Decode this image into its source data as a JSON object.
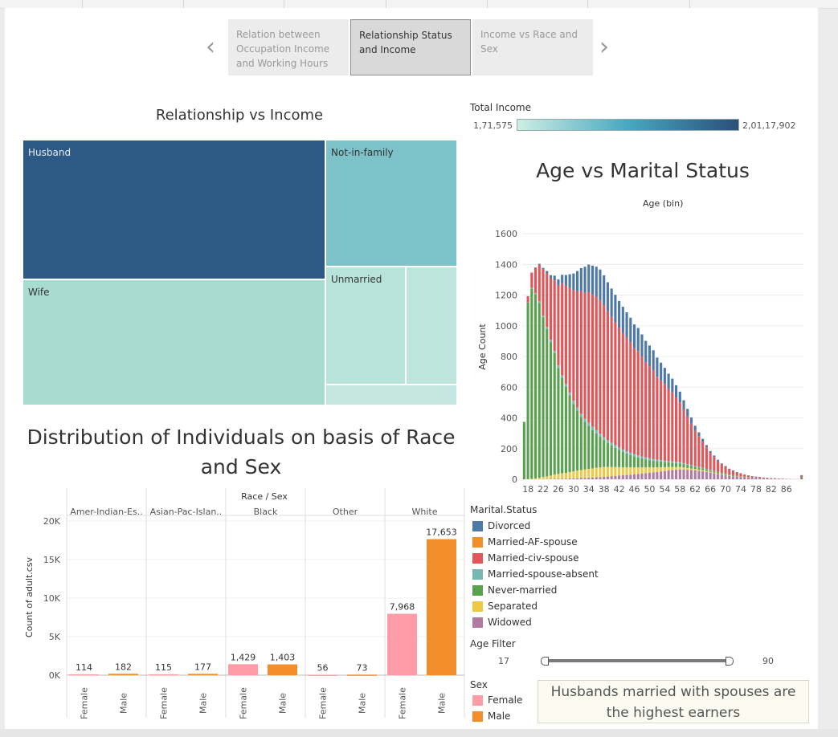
{
  "story": {
    "points": [
      {
        "label": "Relation between Occupation Income and Working Hours",
        "active": false
      },
      {
        "label": "Relationship Status and Income",
        "active": true
      },
      {
        "label": "Income vs Race and Sex",
        "active": false
      }
    ],
    "prev_glyph": "‹",
    "next_glyph": "›"
  },
  "treemap": {
    "title": "Relationship vs Income",
    "cells": [
      {
        "label": "Husband",
        "color": "#2d5986"
      },
      {
        "label": "Wife",
        "color": "#a8dcd3"
      },
      {
        "label": "Not-in-family",
        "color": "#7dc2c9"
      },
      {
        "label": "Unmarried",
        "color": "#b8e3da"
      },
      {
        "label": "",
        "color": "#bde5dc"
      },
      {
        "label": "",
        "color": "#c3e7df"
      }
    ]
  },
  "income_legend": {
    "title": "Total Income",
    "min_label": "1,71,575",
    "max_label": "2,01,17,902",
    "color_low": "#cdeee4",
    "color_mid": "#49a7c0",
    "color_high": "#2a4f79"
  },
  "age_chart": {
    "title": "Age vs Marital Status",
    "header": "Age (bin)",
    "ylabel": "Age Count"
  },
  "race_chart": {
    "title_line1": "Distribution of Individuals on basis of Race",
    "title_line2": "and Sex",
    "header": "Race / Sex",
    "ylabel": "Count of adult.csv"
  },
  "marital_legend": {
    "title": "Marital.Status",
    "items": [
      {
        "label": "Divorced",
        "color": "#4e79a7"
      },
      {
        "label": "Married-AF-spouse",
        "color": "#f28e2b"
      },
      {
        "label": "Married-civ-spouse",
        "color": "#e15759"
      },
      {
        "label": "Married-spouse-absent",
        "color": "#76b7b2"
      },
      {
        "label": "Never-married",
        "color": "#59a14f"
      },
      {
        "label": "Separated",
        "color": "#edc948"
      },
      {
        "label": "Widowed",
        "color": "#b07aa1"
      }
    ]
  },
  "age_filter": {
    "title": "Age Filter",
    "min": "17",
    "max": "90",
    "low_fraction": 0.0,
    "high_fraction": 1.0
  },
  "sex_legend": {
    "title": "Sex",
    "items": [
      {
        "label": "Female",
        "color": "#ff9da7"
      },
      {
        "label": "Male",
        "color": "#f28e2b"
      }
    ]
  },
  "annotation": {
    "text": "Husbands married with spouses are the highest earners"
  },
  "chart_data": [
    {
      "type": "bar",
      "title": "Age vs Marital Status",
      "xlabel": "Age (bin)",
      "ylabel": "Age Count",
      "stacked": true,
      "ylim": [
        0,
        1700
      ],
      "yticks": [
        0,
        200,
        400,
        600,
        800,
        1000,
        1200,
        1400,
        1600
      ],
      "x_tick_labels": [
        "18",
        "22",
        "26",
        "30",
        "34",
        "38",
        "42",
        "46",
        "50",
        "54",
        "58",
        "62",
        "66",
        "70",
        "74",
        "78",
        "82",
        "86"
      ],
      "categories": [
        17,
        18,
        19,
        20,
        21,
        22,
        23,
        24,
        25,
        26,
        27,
        28,
        29,
        30,
        31,
        32,
        33,
        34,
        35,
        36,
        37,
        38,
        39,
        40,
        41,
        42,
        43,
        44,
        45,
        46,
        47,
        48,
        49,
        50,
        51,
        52,
        53,
        54,
        55,
        56,
        57,
        58,
        59,
        60,
        61,
        62,
        63,
        64,
        65,
        66,
        67,
        68,
        69,
        70,
        71,
        72,
        73,
        74,
        75,
        76,
        77,
        78,
        79,
        80,
        81,
        82,
        83,
        84,
        85,
        86,
        87,
        88,
        89,
        90
      ],
      "series": [
        {
          "name": "Widowed",
          "values": [
            0,
            0,
            0,
            0,
            0,
            1,
            1,
            2,
            3,
            3,
            4,
            4,
            5,
            6,
            7,
            8,
            9,
            10,
            11,
            13,
            14,
            16,
            18,
            20,
            22,
            24,
            26,
            28,
            30,
            33,
            35,
            38,
            40,
            43,
            45,
            48,
            51,
            54,
            58,
            60,
            62,
            64,
            63,
            62,
            60,
            58,
            55,
            52,
            48,
            44,
            40,
            35,
            30,
            26,
            22,
            19,
            16,
            14,
            12,
            11,
            10,
            9,
            8,
            7,
            6,
            5,
            4,
            3,
            3,
            2,
            2,
            1,
            1,
            2
          ]
        },
        {
          "name": "Separated",
          "values": [
            0,
            1,
            3,
            6,
            10,
            15,
            18,
            22,
            28,
            32,
            35,
            38,
            42,
            45,
            50,
            52,
            55,
            58,
            60,
            62,
            63,
            64,
            62,
            60,
            58,
            55,
            52,
            50,
            48,
            45,
            42,
            40,
            38,
            35,
            32,
            30,
            28,
            25,
            22,
            20,
            18,
            16,
            14,
            12,
            10,
            9,
            8,
            7,
            6,
            5,
            4,
            4,
            3,
            3,
            2,
            2,
            1,
            1,
            1,
            1,
            0,
            0,
            0,
            0,
            0,
            0,
            0,
            0,
            0,
            0,
            0,
            0,
            0,
            0
          ]
        },
        {
          "name": "Never-married",
          "values": [
            374,
            1150,
            1240,
            1200,
            1140,
            1040,
            960,
            870,
            790,
            690,
            620,
            560,
            500,
            440,
            390,
            345,
            310,
            280,
            250,
            225,
            200,
            175,
            155,
            140,
            125,
            112,
            100,
            90,
            80,
            72,
            65,
            58,
            52,
            47,
            43,
            40,
            36,
            33,
            30,
            28,
            26,
            24,
            22,
            20,
            18,
            16,
            14,
            12,
            11,
            10,
            9,
            8,
            7,
            6,
            5,
            5,
            4,
            4,
            3,
            3,
            2,
            2,
            2,
            1,
            1,
            1,
            1,
            1,
            0,
            0,
            0,
            0,
            0,
            10
          ]
        },
        {
          "name": "Married-spouse-absent",
          "values": [
            0,
            2,
            4,
            6,
            8,
            10,
            12,
            14,
            15,
            16,
            17,
            18,
            18,
            19,
            19,
            20,
            20,
            20,
            20,
            19,
            19,
            18,
            18,
            17,
            17,
            16,
            16,
            15,
            15,
            14,
            14,
            13,
            12,
            12,
            11,
            10,
            10,
            9,
            8,
            8,
            7,
            7,
            6,
            5,
            5,
            4,
            4,
            3,
            3,
            3,
            2,
            2,
            2,
            1,
            1,
            1,
            1,
            1,
            0,
            0,
            0,
            0,
            0,
            0,
            0,
            0,
            0,
            0,
            0,
            0,
            0,
            0,
            0,
            0
          ]
        },
        {
          "name": "Married-AF-spouse",
          "values": [
            0,
            0,
            0,
            1,
            1,
            1,
            1,
            2,
            1,
            2,
            1,
            1,
            1,
            1,
            1,
            1,
            1,
            1,
            1,
            1,
            1,
            1,
            1,
            1,
            0,
            0,
            0,
            0,
            0,
            0,
            0,
            0,
            0,
            0,
            0,
            0,
            0,
            0,
            0,
            0,
            0,
            0,
            0,
            0,
            0,
            0,
            0,
            0,
            0,
            0,
            0,
            0,
            0,
            0,
            0,
            0,
            0,
            0,
            0,
            0,
            0,
            0,
            0,
            0,
            0,
            0,
            0,
            0,
            0,
            0,
            0,
            0,
            0,
            0
          ]
        },
        {
          "name": "Married-civ-spouse",
          "values": [
            0,
            40,
            100,
            165,
            240,
            300,
            350,
            400,
            460,
            520,
            600,
            640,
            680,
            720,
            760,
            800,
            820,
            850,
            860,
            870,
            870,
            860,
            840,
            820,
            800,
            780,
            760,
            740,
            720,
            690,
            680,
            650,
            620,
            600,
            580,
            540,
            520,
            500,
            470,
            450,
            420,
            390,
            350,
            310,
            270,
            230,
            200,
            170,
            140,
            110,
            90,
            70,
            55,
            45,
            35,
            28,
            22,
            18,
            14,
            10,
            8,
            6,
            5,
            4,
            3,
            2,
            2,
            1,
            1,
            1,
            0,
            0,
            0,
            10
          ]
        },
        {
          "name": "Divorced",
          "values": [
            0,
            0,
            0,
            2,
            5,
            10,
            15,
            20,
            30,
            40,
            55,
            70,
            90,
            110,
            130,
            150,
            170,
            180,
            190,
            195,
            200,
            195,
            190,
            185,
            180,
            175,
            170,
            165,
            160,
            155,
            150,
            145,
            140,
            135,
            130,
            125,
            115,
            105,
            100,
            90,
            80,
            70,
            60,
            50,
            40,
            32,
            25,
            20,
            15,
            12,
            10,
            8,
            6,
            5,
            4,
            3,
            3,
            2,
            2,
            1,
            1,
            1,
            1,
            0,
            0,
            0,
            0,
            0,
            0,
            0,
            0,
            0,
            0,
            5
          ]
        }
      ]
    },
    {
      "type": "bar",
      "title": "Distribution of Individuals on basis of Race and Sex",
      "xlabel": "Race / Sex",
      "ylabel": "Count of adult.csv",
      "ylim": [
        0,
        20000
      ],
      "yticks": [
        0,
        5000,
        10000,
        15000,
        20000
      ],
      "ytick_labels": [
        "0K",
        "5K",
        "10K",
        "15K",
        "20K"
      ],
      "categories": [
        "Amer-Indian-Es..",
        "Asian-Pac-Islan..",
        "Black",
        "Other",
        "White"
      ],
      "series": [
        {
          "name": "Female",
          "values": [
            114,
            115,
            1429,
            56,
            7968
          ],
          "labels": [
            "114",
            "115",
            "1,429",
            "56",
            "7,968"
          ]
        },
        {
          "name": "Male",
          "values": [
            182,
            177,
            1403,
            73,
            17653
          ],
          "labels": [
            "182",
            "177",
            "1,403",
            "73",
            "17,653"
          ]
        }
      ]
    },
    {
      "type": "heatmap",
      "title": "Relationship vs Income",
      "categories": [
        "Husband",
        "Wife",
        "Not-in-family",
        "Unmarried"
      ],
      "legend": "Total Income"
    }
  ]
}
